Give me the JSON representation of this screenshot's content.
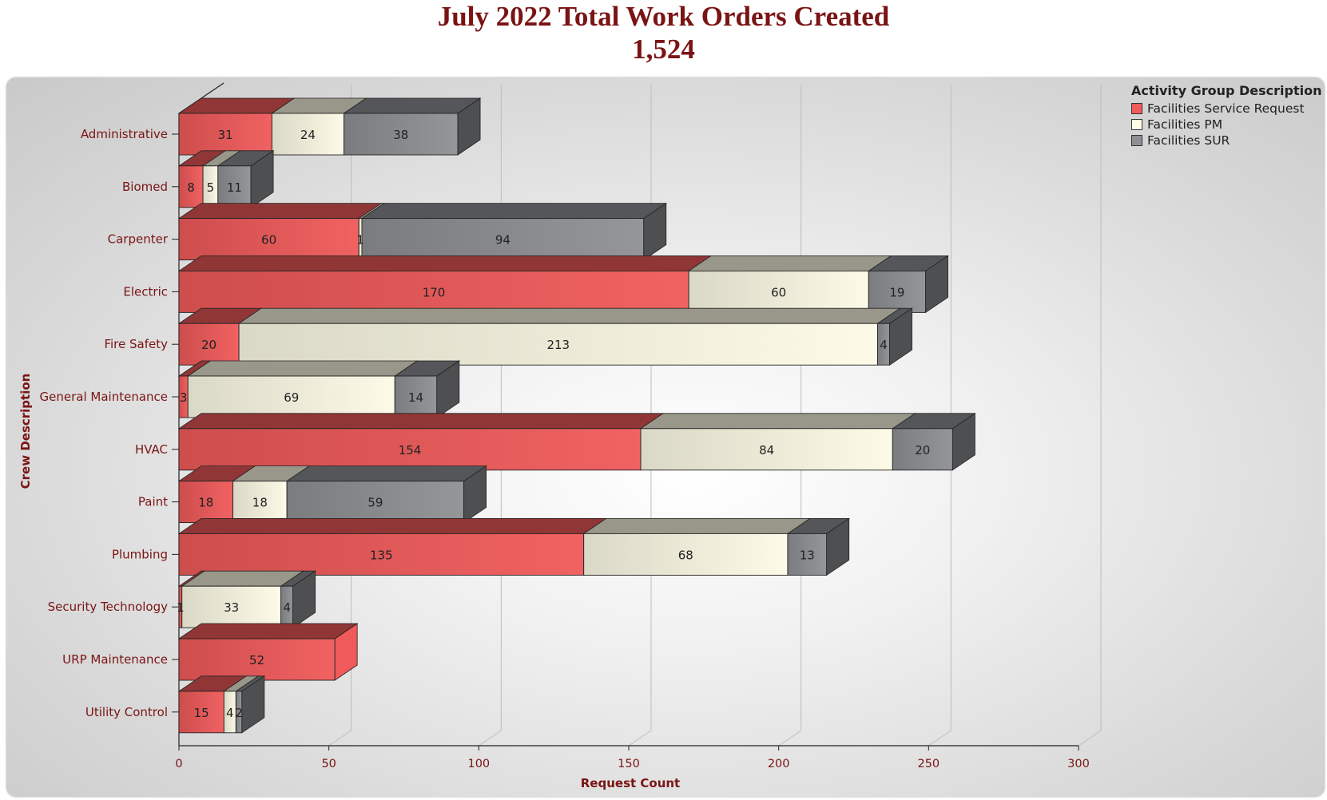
{
  "title": "July 2022 Total Work Orders Created",
  "subtitle": "1,524",
  "chart_data": {
    "type": "bar",
    "orientation": "horizontal",
    "stacked": true,
    "three_d": true,
    "categories": [
      "Administrative",
      "Biomed",
      "Carpenter",
      "Electric",
      "Fire Safety",
      "General Maintenance",
      "HVAC",
      "Paint",
      "Plumbing",
      "Security Technology",
      "URP Maintenance",
      "Utility Control"
    ],
    "series": [
      {
        "name": "Facilities Service Request",
        "color": "#f05a5a",
        "values": [
          31,
          8,
          60,
          170,
          20,
          3,
          154,
          18,
          135,
          1,
          52,
          15
        ]
      },
      {
        "name": "Facilities PM",
        "color": "#fdfbe6",
        "values": [
          24,
          5,
          1,
          60,
          213,
          69,
          84,
          18,
          68,
          33,
          0,
          4
        ]
      },
      {
        "name": "Facilities SUR",
        "color": "#8e9094",
        "values": [
          38,
          11,
          94,
          19,
          4,
          14,
          20,
          59,
          13,
          4,
          0,
          2
        ]
      }
    ],
    "xlabel": "Request Count",
    "ylabel": "Crew Description",
    "xlim": [
      0,
      300
    ],
    "xticks": [
      0,
      50,
      100,
      150,
      200,
      250,
      300
    ],
    "legend_title": "Activity Group Description",
    "legend_position": "top-right",
    "grid": true
  }
}
